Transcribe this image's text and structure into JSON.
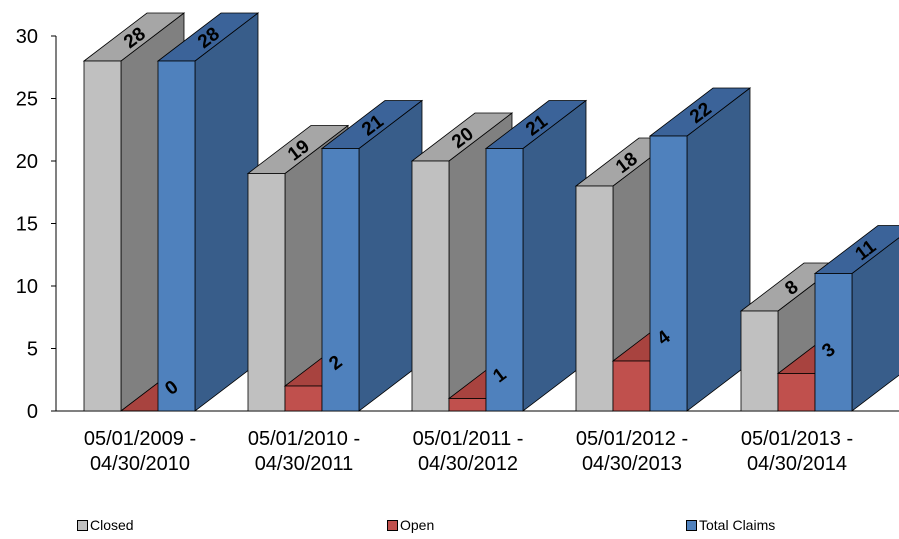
{
  "chart_data": {
    "type": "bar",
    "title": "",
    "xlabel": "",
    "ylabel": "",
    "ylim": [
      0,
      30
    ],
    "yticks": [
      "0",
      "5",
      "10",
      "15",
      "20",
      "25",
      "30"
    ],
    "categories": [
      [
        "05/01/2009 -",
        "04/30/2010"
      ],
      [
        "05/01/2010 -",
        "04/30/2011"
      ],
      [
        "05/01/2011 -",
        "04/30/2012"
      ],
      [
        "05/01/2012 -",
        "04/30/2013"
      ],
      [
        "05/01/2013 -",
        "04/30/2014"
      ]
    ],
    "series": [
      {
        "name": "Closed",
        "values": [
          28,
          19,
          20,
          18,
          8
        ],
        "labels": [
          "28",
          "19",
          "20",
          "18",
          "8"
        ],
        "color": "#c0c0c0",
        "side": "#808080",
        "top": "#a6a6a6"
      },
      {
        "name": "Open",
        "values": [
          0,
          2,
          1,
          4,
          3
        ],
        "labels": [
          "0",
          "2",
          "1",
          "4",
          "3"
        ],
        "color": "#c0504d",
        "side": "#8c3836",
        "top": "#a8433f"
      },
      {
        "name": "Total Claims",
        "values": [
          28,
          21,
          21,
          22,
          11
        ],
        "labels": [
          "28",
          "21",
          "21",
          "22",
          "11"
        ],
        "color": "#4f81bd",
        "side": "#385d8a",
        "top": "#3b6399"
      }
    ],
    "legend_position": "bottom",
    "grid": false,
    "three_d": true
  }
}
